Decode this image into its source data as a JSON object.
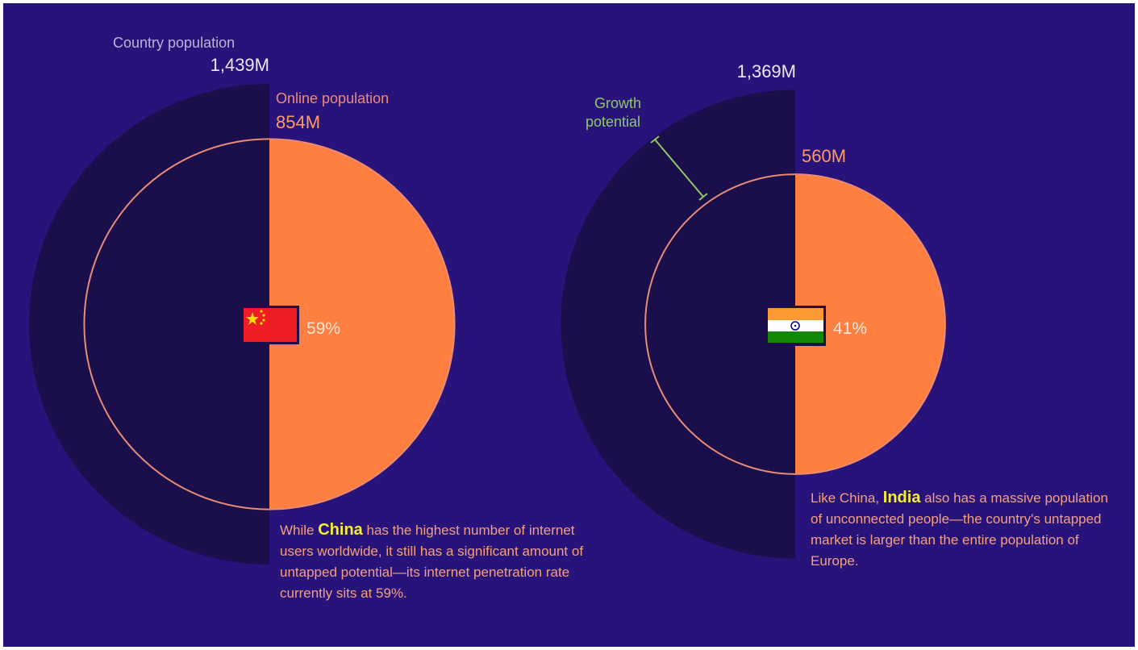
{
  "chart_data": {
    "type": "pie",
    "series": [
      {
        "country": "China",
        "country_population": 1439,
        "online_population": 854,
        "penetration_pct": 59,
        "country_population_label": "1,439M",
        "online_population_label": "854M",
        "penetration_label": "59%"
      },
      {
        "country": "India",
        "country_population": 1369,
        "online_population": 560,
        "penetration_pct": 41,
        "country_population_label": "1,369M",
        "online_population_label": "560M",
        "penetration_label": "41%"
      }
    ],
    "labels": {
      "country_population": "Country population",
      "online_population": "Online population",
      "growth_potential_line1": "Growth",
      "growth_potential_line2": "potential"
    },
    "colors": {
      "background": "#28137a",
      "outer_circle": "#1a0f4a",
      "online_fill": "#ff7f41",
      "online_ring": "#e98b76",
      "growth_bracket": "#8fc76a",
      "highlight": "#f3ef2f"
    }
  },
  "captions": {
    "china": {
      "prefix": "While ",
      "highlight": "China",
      "rest": " has the highest number of internet users worldwide, it still has a significant amount of untapped potential—its internet penetration rate currently sits at 59%."
    },
    "india": {
      "prefix": "Like China, ",
      "highlight": "India",
      "rest": " also has a massive population of unconnected people—the country's untapped market is larger than the entire population of Europe."
    }
  }
}
